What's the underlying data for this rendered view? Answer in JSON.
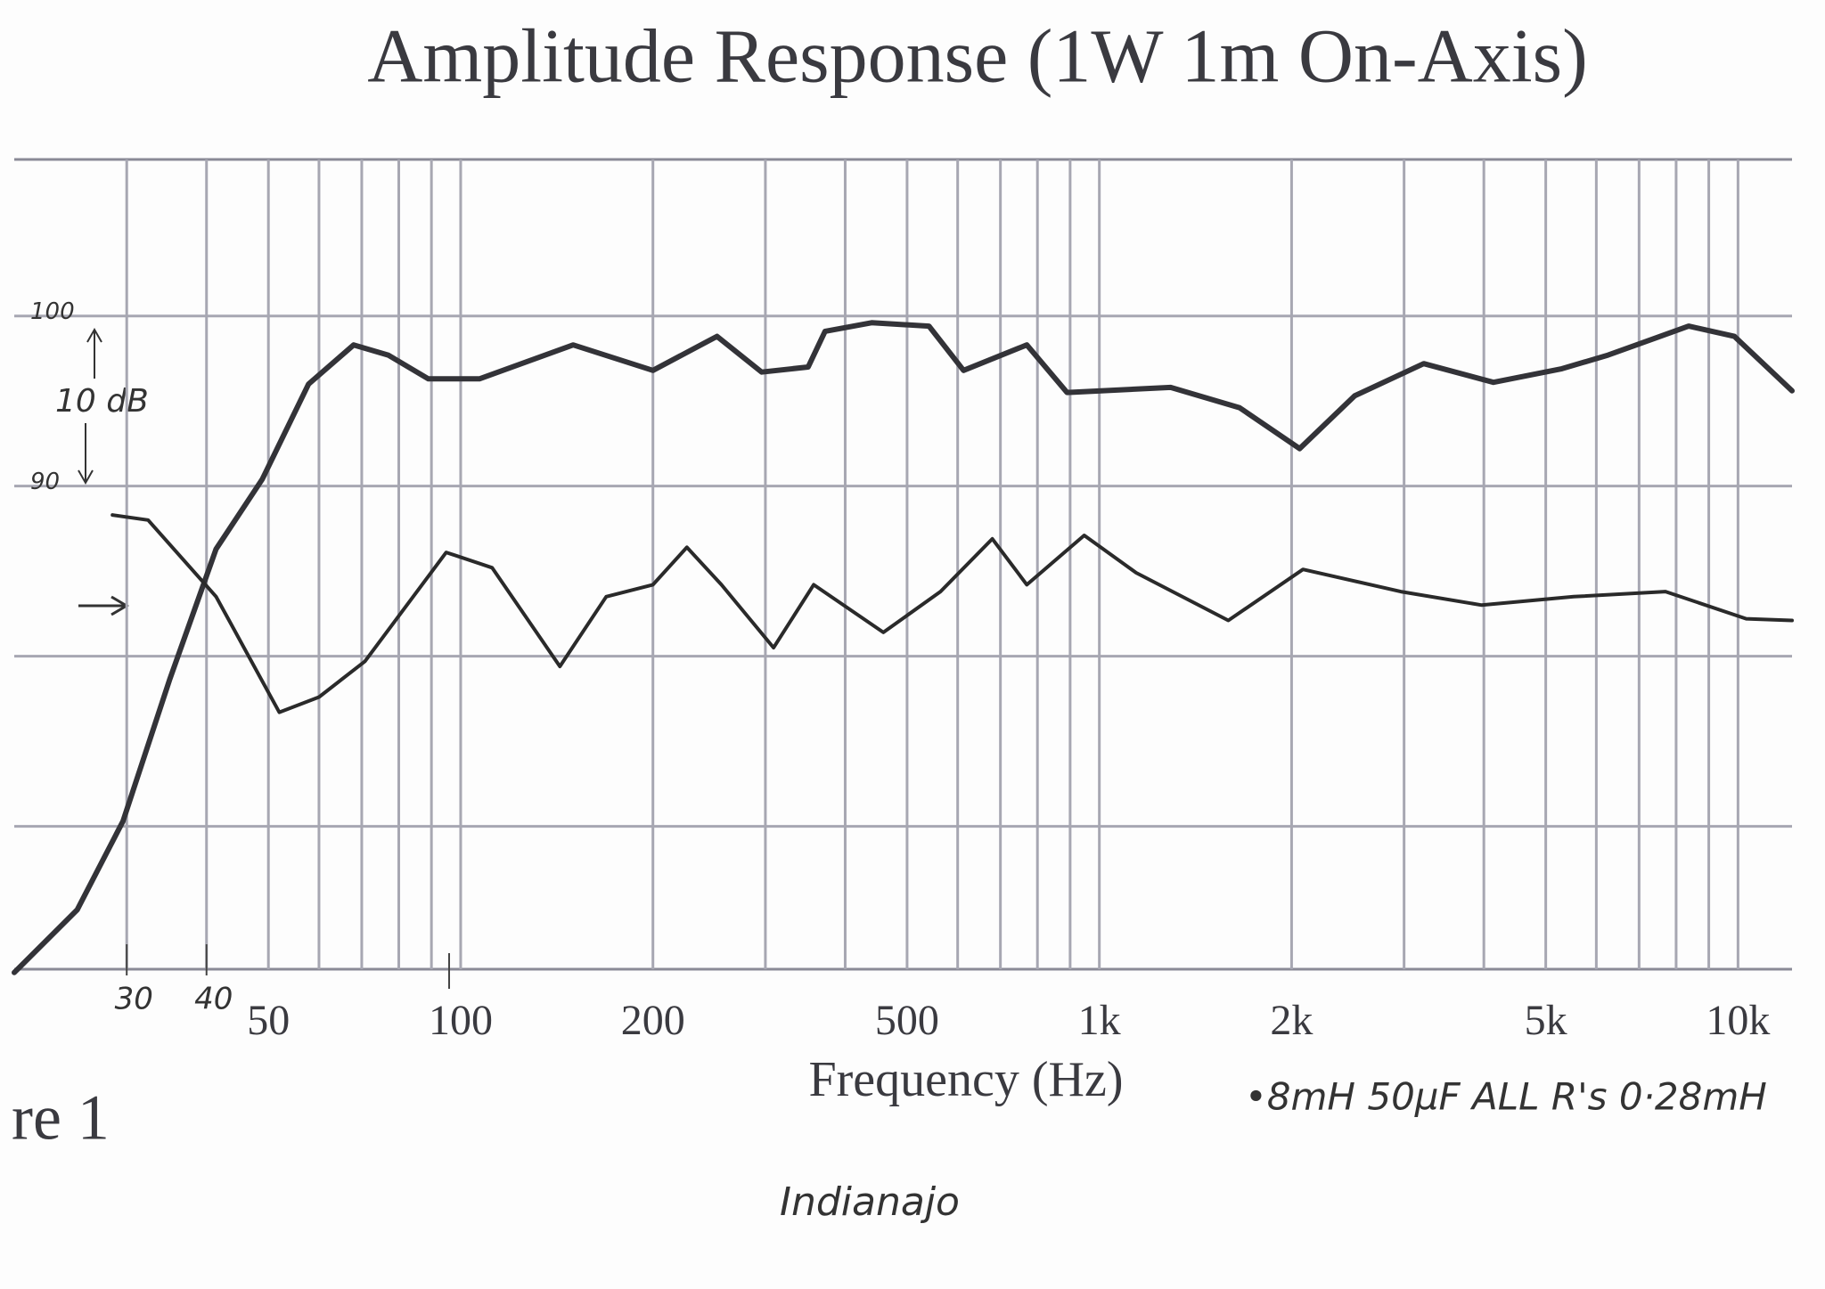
{
  "chart_data": {
    "type": "line",
    "title": "Amplitude Response   (1W 1m  On-Axis)",
    "xlabel": "Frequency (Hz)",
    "figure_label": "re 1",
    "annotations": {
      "scale": "10 dB",
      "components": "•8mH  50µF  ALL R's  0·28mH",
      "signature": "Indianajo"
    },
    "log_x": true,
    "xlim": [
      20,
      12150
    ],
    "ylim": [
      61.6,
      109.2
    ],
    "xticks": [
      50,
      100,
      200,
      {
        "value": 1000,
        "label": "1k"
      },
      {
        "value": 2000,
        "label": "2k"
      },
      {
        "value": 5000,
        "label": "5k"
      },
      {
        "value": 10000,
        "label": "10k"
      },
      500
    ],
    "hand_xticks": [
      30,
      40
    ],
    "yticks": [
      100,
      90
    ],
    "ygrid": [
      70,
      80,
      90,
      100
    ],
    "xgrid": [
      30,
      40,
      50,
      60,
      70,
      80,
      90,
      100,
      200,
      300,
      400,
      500,
      600,
      700,
      800,
      900,
      1000,
      2000,
      3000,
      4000,
      5000,
      6000,
      7000,
      8000,
      9000,
      10000
    ],
    "series": [
      {
        "color": "#333338",
        "x": [
          20,
          25.1,
          29.6,
          35,
          41.4,
          48.9,
          57.8,
          68,
          77,
          89,
          107,
          150,
          200,
          252,
          296,
          350,
          372,
          440,
          541,
          613,
          770,
          890,
          1293,
          1659,
          2059,
          2510,
          3220,
          4140,
          5300,
          6260,
          8370,
          9870,
          12150
        ],
        "values": [
          61.4,
          65.1,
          70.3,
          78.6,
          86.3,
          90.4,
          96,
          98.3,
          97.7,
          96.3,
          96.3,
          98.3,
          96.8,
          98.8,
          96.7,
          97,
          99.1,
          99.6,
          99.4,
          96.8,
          98.3,
          95.5,
          95.8,
          94.6,
          92.2,
          95.3,
          97.2,
          96.1,
          96.9,
          97.7,
          99.4,
          98.8,
          95.6
        ]
      },
      {
        "color": "#2a2a2a",
        "x": [
          28.5,
          32.4,
          41.4,
          52,
          60,
          70.8,
          94.9,
          112,
          143,
          169,
          200,
          226,
          256,
          309,
          357,
          459,
          564,
          680,
          770,
          947,
          1142,
          1592,
          2084,
          2964,
          3970,
          5530,
          7700,
          10300,
          12150
        ],
        "values": [
          88.3,
          88,
          83.5,
          76.7,
          77.6,
          79.7,
          86.1,
          85.2,
          79.4,
          83.5,
          84.2,
          86.4,
          84.2,
          80.5,
          84.2,
          81.4,
          83.8,
          86.9,
          84.2,
          87.1,
          84.9,
          82.1,
          85.1,
          83.8,
          83,
          83.5,
          83.8,
          82.2,
          82.1
        ]
      }
    ]
  }
}
